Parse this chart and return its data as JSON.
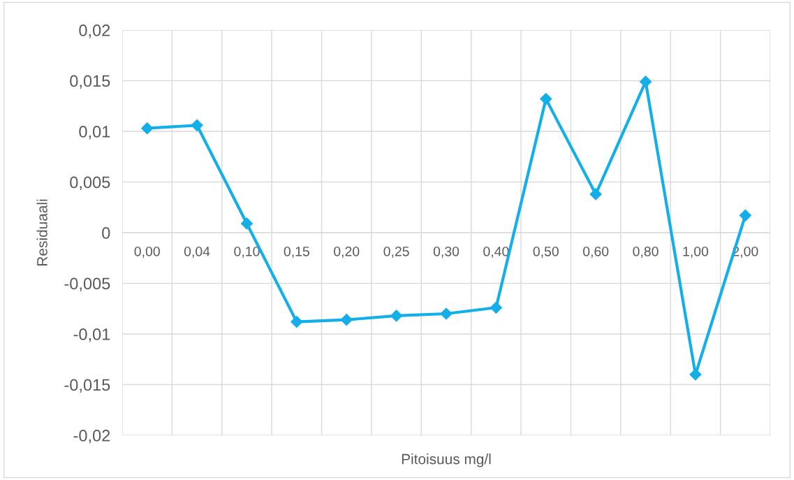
{
  "chart_data": {
    "type": "line",
    "xlabel": "Pitoisuus mg/l",
    "ylabel": "Residuaali",
    "categories": [
      "0,00",
      "0,04",
      "0,10",
      "0,15",
      "0,20",
      "0,25",
      "0,30",
      "0,40",
      "0,50",
      "0,60",
      "0,80",
      "1,00",
      "2,00"
    ],
    "series": [
      {
        "color": "#14aee8",
        "values": [
          0.0103,
          0.0106,
          0.0009,
          -0.0088,
          -0.0086,
          -0.0082,
          -0.008,
          -0.0074,
          0.0132,
          0.0038,
          0.0149,
          -0.014,
          0.0017
        ]
      }
    ],
    "ylim": [
      -0.02,
      0.02
    ],
    "yticks": [
      {
        "value": -0.02,
        "label": "-0,02"
      },
      {
        "value": -0.015,
        "label": "-0,015"
      },
      {
        "value": -0.01,
        "label": "-0,01"
      },
      {
        "value": -0.005,
        "label": "-0,005"
      },
      {
        "value": 0,
        "label": "0"
      },
      {
        "value": 0.005,
        "label": "0,005"
      },
      {
        "value": 0.01,
        "label": "0,01"
      },
      {
        "value": 0.015,
        "label": "0,015"
      },
      {
        "value": 0.02,
        "label": "0,02"
      }
    ],
    "grid": true,
    "marker": "diamond",
    "line_style": "solid"
  }
}
